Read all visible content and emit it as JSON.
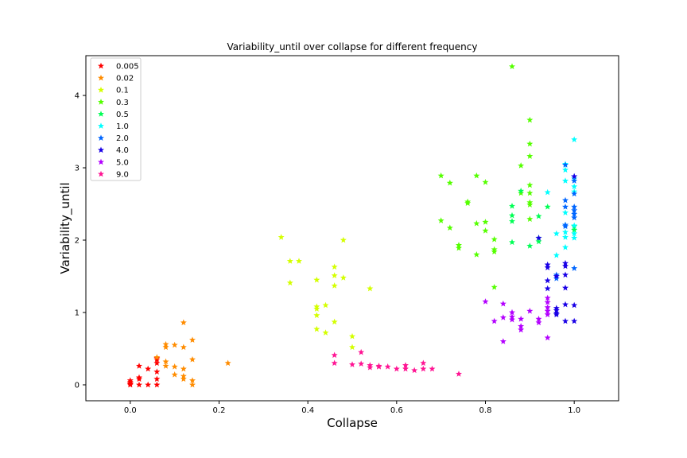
{
  "chart_data": {
    "type": "scatter",
    "title": "Variability_until over collapse for different frequency",
    "xlabel": "Collapse",
    "ylabel": "Variability_until",
    "xlim": [
      -0.1,
      1.1
    ],
    "ylim": [
      -0.22,
      4.55
    ],
    "xticks": [
      0.0,
      0.2,
      0.4,
      0.6,
      0.8,
      1.0
    ],
    "xtick_labels": [
      "0.0",
      "0.2",
      "0.4",
      "0.6",
      "0.8",
      "1.0"
    ],
    "yticks": [
      0,
      1,
      2,
      3,
      4
    ],
    "ytick_labels": [
      "0",
      "1",
      "2",
      "3",
      "4"
    ],
    "grid": false,
    "legend_position": "upper-left",
    "marker": "star",
    "series": [
      {
        "name": "0.005",
        "color": "#ff0000",
        "points": [
          [
            0.0,
            0.0
          ],
          [
            0.0,
            0.02
          ],
          [
            0.0,
            0.04
          ],
          [
            0.0,
            0.06
          ],
          [
            0.0,
            0.01
          ],
          [
            0.02,
            0.0
          ],
          [
            0.02,
            0.08
          ],
          [
            0.02,
            0.1
          ],
          [
            0.02,
            0.26
          ],
          [
            0.04,
            0.0
          ],
          [
            0.04,
            0.22
          ],
          [
            0.06,
            0.0
          ],
          [
            0.06,
            0.08
          ],
          [
            0.06,
            0.18
          ],
          [
            0.06,
            0.35
          ],
          [
            0.06,
            0.3
          ],
          [
            0.06,
            0.37
          ]
        ]
      },
      {
        "name": "0.02",
        "color": "#ff8c00",
        "points": [
          [
            0.06,
            0.38
          ],
          [
            0.08,
            0.26
          ],
          [
            0.08,
            0.32
          ],
          [
            0.08,
            0.52
          ],
          [
            0.08,
            0.56
          ],
          [
            0.1,
            0.14
          ],
          [
            0.1,
            0.25
          ],
          [
            0.1,
            0.55
          ],
          [
            0.12,
            0.08
          ],
          [
            0.12,
            0.12
          ],
          [
            0.12,
            0.22
          ],
          [
            0.12,
            0.52
          ],
          [
            0.12,
            0.86
          ],
          [
            0.14,
            0.0
          ],
          [
            0.14,
            0.06
          ],
          [
            0.14,
            0.35
          ],
          [
            0.14,
            0.62
          ],
          [
            0.22,
            0.3
          ]
        ]
      },
      {
        "name": "0.1",
        "color": "#d4ff00",
        "points": [
          [
            0.34,
            2.04
          ],
          [
            0.36,
            1.41
          ],
          [
            0.36,
            1.71
          ],
          [
            0.38,
            1.71
          ],
          [
            0.42,
            0.77
          ],
          [
            0.42,
            0.96
          ],
          [
            0.42,
            1.05
          ],
          [
            0.42,
            1.08
          ],
          [
            0.42,
            1.45
          ],
          [
            0.44,
            0.72
          ],
          [
            0.44,
            1.1
          ],
          [
            0.46,
            0.87
          ],
          [
            0.46,
            1.37
          ],
          [
            0.46,
            1.51
          ],
          [
            0.46,
            1.63
          ],
          [
            0.48,
            1.48
          ],
          [
            0.48,
            2.0
          ],
          [
            0.5,
            0.52
          ],
          [
            0.5,
            0.67
          ],
          [
            0.54,
            1.33
          ]
        ]
      },
      {
        "name": "0.3",
        "color": "#55ff00",
        "points": [
          [
            0.7,
            2.27
          ],
          [
            0.7,
            2.89
          ],
          [
            0.72,
            2.17
          ],
          [
            0.72,
            2.79
          ],
          [
            0.74,
            1.89
          ],
          [
            0.74,
            1.93
          ],
          [
            0.76,
            2.51
          ],
          [
            0.76,
            2.53
          ],
          [
            0.78,
            1.8
          ],
          [
            0.78,
            2.23
          ],
          [
            0.78,
            2.89
          ],
          [
            0.8,
            2.13
          ],
          [
            0.8,
            2.25
          ],
          [
            0.8,
            2.8
          ],
          [
            0.82,
            1.84
          ],
          [
            0.82,
            1.87
          ],
          [
            0.82,
            2.01
          ],
          [
            0.82,
            1.35
          ],
          [
            0.86,
            4.4
          ],
          [
            0.88,
            3.03
          ],
          [
            0.88,
            2.65
          ],
          [
            0.9,
            3.66
          ],
          [
            0.9,
            3.33
          ],
          [
            0.9,
            3.16
          ],
          [
            0.9,
            2.76
          ],
          [
            0.9,
            2.65
          ],
          [
            0.9,
            2.52
          ],
          [
            0.9,
            2.49
          ],
          [
            0.9,
            2.29
          ]
        ]
      },
      {
        "name": "0.5",
        "color": "#00ff55",
        "points": [
          [
            0.86,
            2.47
          ],
          [
            0.86,
            2.34
          ],
          [
            0.86,
            2.26
          ],
          [
            0.86,
            1.97
          ],
          [
            0.88,
            2.68
          ],
          [
            0.9,
            1.92
          ],
          [
            0.92,
            2.33
          ],
          [
            0.92,
            2.03
          ],
          [
            0.92,
            1.98
          ],
          [
            0.94,
            2.46
          ],
          [
            1.0,
            2.19
          ],
          [
            1.0,
            2.14
          ]
        ]
      },
      {
        "name": "1.0",
        "color": "#00ffff",
        "points": [
          [
            0.94,
            2.66
          ],
          [
            0.96,
            2.09
          ],
          [
            0.96,
            1.79
          ],
          [
            0.98,
            3.05
          ],
          [
            0.98,
            2.97
          ],
          [
            0.98,
            2.82
          ],
          [
            0.98,
            2.38
          ],
          [
            0.98,
            2.21
          ],
          [
            0.98,
            2.11
          ],
          [
            0.98,
            2.04
          ],
          [
            0.98,
            1.9
          ],
          [
            1.0,
            3.39
          ],
          [
            1.0,
            2.85
          ],
          [
            1.0,
            2.74
          ],
          [
            1.0,
            2.67
          ],
          [
            1.0,
            2.2
          ],
          [
            1.0,
            2.09
          ],
          [
            1.0,
            2.03
          ]
        ]
      },
      {
        "name": "2.0",
        "color": "#0066ff",
        "points": [
          [
            0.96,
            1.52
          ],
          [
            0.96,
            1.47
          ],
          [
            0.98,
            3.04
          ],
          [
            0.98,
            2.55
          ],
          [
            0.98,
            2.46
          ],
          [
            0.98,
            2.21
          ],
          [
            0.98,
            2.19
          ],
          [
            1.0,
            2.88
          ],
          [
            1.0,
            2.82
          ],
          [
            1.0,
            2.64
          ],
          [
            1.0,
            2.46
          ],
          [
            1.0,
            2.41
          ],
          [
            1.0,
            2.36
          ],
          [
            1.0,
            2.31
          ],
          [
            1.0,
            1.61
          ]
        ]
      },
      {
        "name": "4.0",
        "color": "#1a00e6",
        "points": [
          [
            0.92,
            2.03
          ],
          [
            0.94,
            1.66
          ],
          [
            0.94,
            1.62
          ],
          [
            0.94,
            1.44
          ],
          [
            0.94,
            1.33
          ],
          [
            0.96,
            1.5
          ],
          [
            0.96,
            1.06
          ],
          [
            0.96,
            1.03
          ],
          [
            0.96,
            0.99
          ],
          [
            0.96,
            0.97
          ],
          [
            0.98,
            1.68
          ],
          [
            0.98,
            1.64
          ],
          [
            0.98,
            1.52
          ],
          [
            0.98,
            1.34
          ],
          [
            0.98,
            1.11
          ],
          [
            0.98,
            0.88
          ],
          [
            1.0,
            2.88
          ],
          [
            1.0,
            1.1
          ],
          [
            1.0,
            0.88
          ]
        ]
      },
      {
        "name": "5.0",
        "color": "#b300ff",
        "points": [
          [
            0.8,
            1.15
          ],
          [
            0.82,
            0.88
          ],
          [
            0.84,
            1.12
          ],
          [
            0.84,
            0.93
          ],
          [
            0.84,
            0.6
          ],
          [
            0.86,
            1.0
          ],
          [
            0.86,
            0.94
          ],
          [
            0.86,
            0.9
          ],
          [
            0.88,
            0.91
          ],
          [
            0.88,
            0.81
          ],
          [
            0.88,
            0.76
          ],
          [
            0.9,
            1.02
          ],
          [
            0.92,
            0.91
          ],
          [
            0.92,
            0.86
          ],
          [
            0.94,
            1.2
          ],
          [
            0.94,
            1.14
          ],
          [
            0.94,
            1.07
          ],
          [
            0.94,
            1.02
          ],
          [
            0.94,
            0.97
          ],
          [
            0.94,
            0.65
          ]
        ]
      },
      {
        "name": "9.0",
        "color": "#ff1493",
        "points": [
          [
            0.46,
            0.41
          ],
          [
            0.46,
            0.3
          ],
          [
            0.5,
            0.28
          ],
          [
            0.52,
            0.45
          ],
          [
            0.52,
            0.29
          ],
          [
            0.54,
            0.27
          ],
          [
            0.54,
            0.24
          ],
          [
            0.56,
            0.26
          ],
          [
            0.56,
            0.25
          ],
          [
            0.58,
            0.25
          ],
          [
            0.6,
            0.22
          ],
          [
            0.62,
            0.27
          ],
          [
            0.62,
            0.22
          ],
          [
            0.64,
            0.2
          ],
          [
            0.66,
            0.3
          ],
          [
            0.66,
            0.22
          ],
          [
            0.68,
            0.22
          ],
          [
            0.74,
            0.15
          ]
        ]
      }
    ]
  }
}
